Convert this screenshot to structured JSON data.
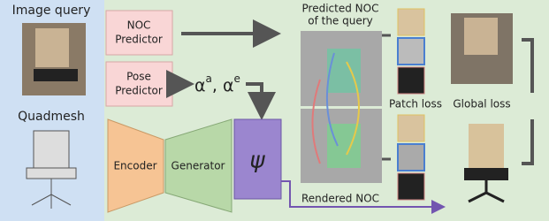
{
  "left_panel": {
    "image_query": "Image query",
    "quadmesh": "Quadmesh"
  },
  "modules": {
    "noc_predictor": [
      "NOC",
      "Predictor"
    ],
    "pose_predictor": [
      "Pose",
      "Predictor"
    ],
    "encoder": "Encoder",
    "generator": "Generator",
    "psi": "ψ"
  },
  "pose_output": {
    "base1": "α",
    "sup1": "a",
    "base2": ", α",
    "sup2": "e"
  },
  "outputs": {
    "predicted_noc": [
      "Predicted NOC",
      "of the query"
    ],
    "rendered_noc": "Rendered NOC",
    "patch_loss": "Patch loss",
    "global_loss": "Global loss"
  }
}
